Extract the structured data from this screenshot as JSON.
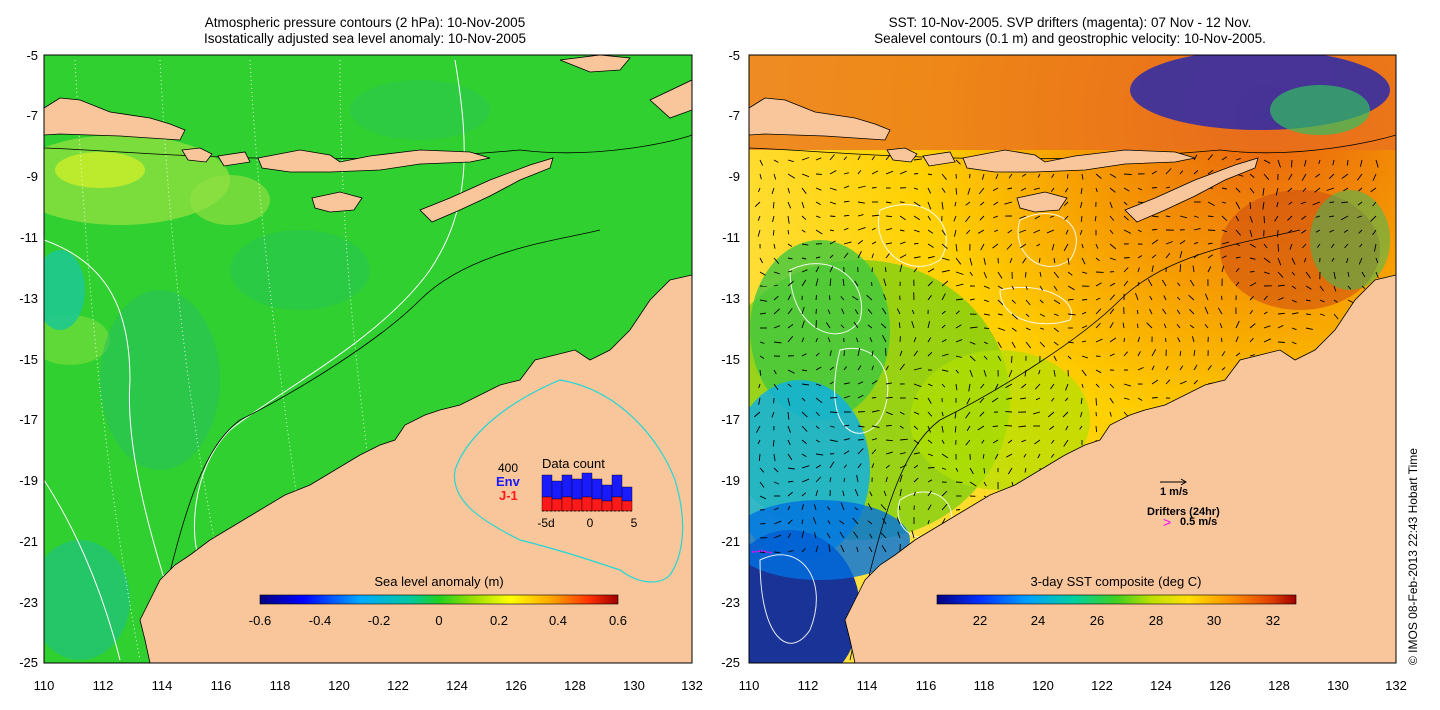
{
  "left_panel": {
    "title_line1": "Atmospheric pressure contours (2 hPa): 10-Nov-2005",
    "title_line2": "Isostatically adjusted sea level anomaly: 10-Nov-2005",
    "colorbar": {
      "label": "Sea level anomaly (m)",
      "ticks": [
        "-0.6",
        "-0.4",
        "-0.2",
        "0",
        "0.2",
        "0.4",
        "0.6"
      ]
    },
    "inset": {
      "title": "Data count",
      "max_label": "400",
      "legend_env": "Env",
      "legend_j1": "J-1",
      "xticks": [
        "-5d",
        "0",
        "5"
      ],
      "env_color": "#1a1aff",
      "j1_color": "#ff1a1a"
    }
  },
  "right_panel": {
    "title_line1": "SST: 10-Nov-2005. SVP drifters (magenta): 07 Nov - 12 Nov.",
    "title_line2": "Sealevel contours (0.1 m) and geostrophic velocity: 10-Nov-2005.",
    "colorbar": {
      "label": "3-day SST composite (deg C)",
      "ticks": [
        "22",
        "24",
        "26",
        "28",
        "30",
        "32"
      ]
    },
    "vector_scale_label": "1 m/s",
    "drifters_label": "Drifters (24hr)",
    "drifters_scale_label": "0.5 m/s"
  },
  "axes": {
    "lat_ticks": [
      "-5",
      "-7",
      "-9",
      "-11",
      "-13",
      "-15",
      "-17",
      "-19",
      "-21",
      "-23",
      "-25"
    ],
    "lon_ticks": [
      "110",
      "112",
      "114",
      "116",
      "118",
      "120",
      "122",
      "124",
      "126",
      "128",
      "130",
      "132"
    ]
  },
  "credit": "© IMOS 08-Feb-2013 22:43 Hobart Time",
  "colors": {
    "land": "#f9c69b",
    "ocean_sla": "#2fd02f",
    "drifter_magenta": "#ff00ff",
    "contour_white": "#ffffff",
    "ssh_outline_cyan": "#22d6d6"
  }
}
